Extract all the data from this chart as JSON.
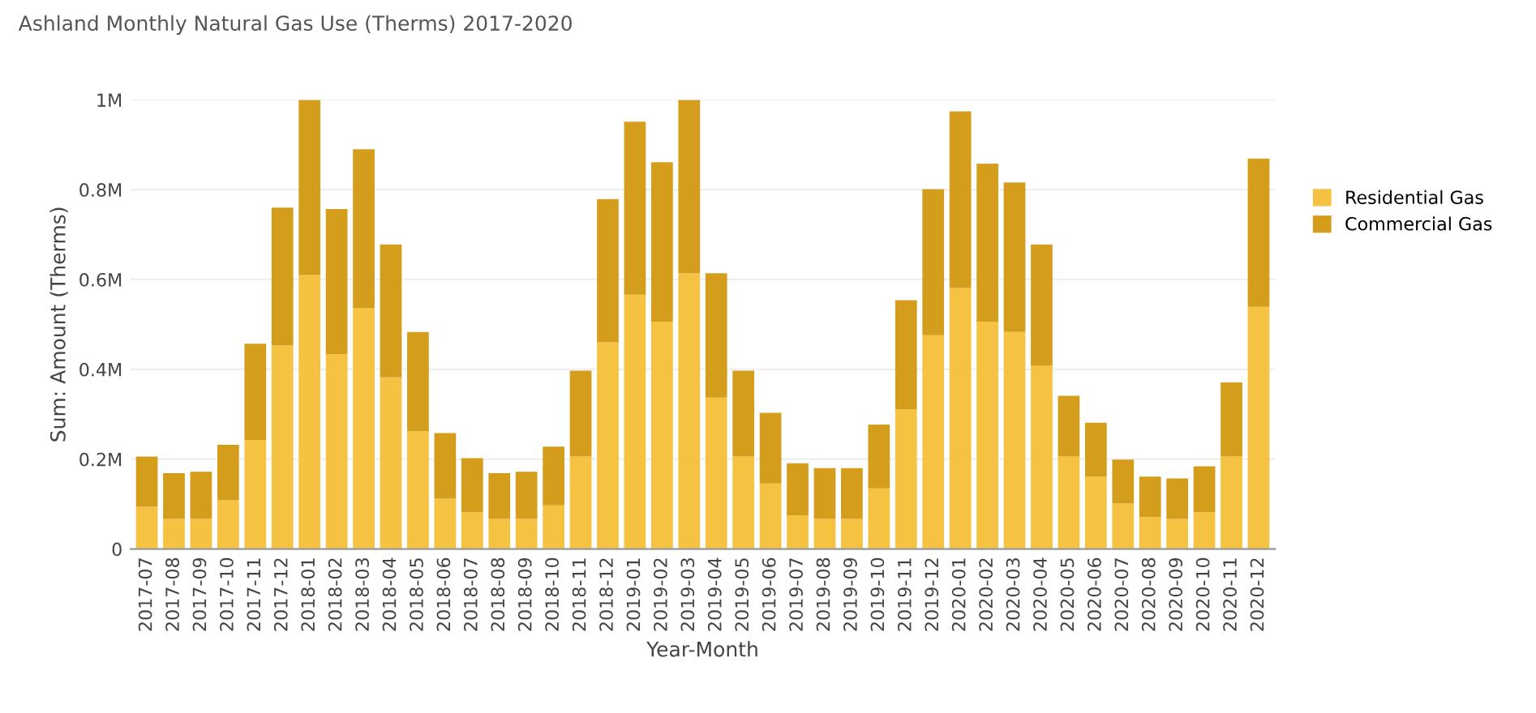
{
  "chart_data": {
    "type": "bar",
    "title": "Ashland Monthly Natural Gas Use (Therms) 2017-2020",
    "xlabel": "Year-Month",
    "ylabel": "Sum: Amount (Therms)",
    "categories": [
      "2017-07",
      "2017-08",
      "2017-09",
      "2017-10",
      "2017-11",
      "2017-12",
      "2018-01",
      "2018-02",
      "2018-03",
      "2018-04",
      "2018-05",
      "2018-06",
      "2018-07",
      "2018-08",
      "2018-09",
      "2018-10",
      "2018-11",
      "2018-12",
      "2019-01",
      "2019-02",
      "2019-03",
      "2019-04",
      "2019-05",
      "2019-06",
      "2019-07",
      "2019-08",
      "2019-09",
      "2019-10",
      "2019-11",
      "2019-12",
      "2020-01",
      "2020-02",
      "2020-03",
      "2020-04",
      "2020-05",
      "2020-06",
      "2020-07",
      "2020-08",
      "2020-09",
      "2020-10",
      "2020-11",
      "2020-12"
    ],
    "stacked": true,
    "series": [
      {
        "name": "Residential Gas",
        "color": "#f5c242",
        "values": [
          94000,
          67000,
          67000,
          109000,
          243000,
          453000,
          610000,
          434000,
          536000,
          382000,
          262000,
          112000,
          82000,
          67000,
          67000,
          97000,
          206000,
          460000,
          566000,
          506000,
          614000,
          337000,
          206000,
          146000,
          75000,
          67000,
          67000,
          135000,
          311000,
          476000,
          581000,
          506000,
          483000,
          408000,
          206000,
          161000,
          101000,
          71000,
          67000,
          82000,
          206000,
          539000
        ]
      },
      {
        "name": "Commercial Gas",
        "color": "#d49e1c",
        "values": [
          112000,
          102000,
          105000,
          123000,
          214000,
          307000,
          390000,
          323000,
          354000,
          296000,
          221000,
          146000,
          120000,
          102000,
          105000,
          131000,
          191000,
          319000,
          385000,
          355000,
          386000,
          277000,
          191000,
          157000,
          116000,
          113000,
          113000,
          142000,
          243000,
          325000,
          393000,
          352000,
          333000,
          270000,
          135000,
          120000,
          98000,
          90000,
          90000,
          102000,
          165000,
          330000
        ]
      }
    ],
    "ylim": [
      0,
      1000000
    ],
    "yticks": [
      {
        "value": 0,
        "label": "0"
      },
      {
        "value": 200000,
        "label": "0.2M"
      },
      {
        "value": 400000,
        "label": "0.4M"
      },
      {
        "value": 600000,
        "label": "0.6M"
      },
      {
        "value": 800000,
        "label": "0.8M"
      },
      {
        "value": 1000000,
        "label": "1M"
      }
    ],
    "grid": "y",
    "legend": "right"
  }
}
